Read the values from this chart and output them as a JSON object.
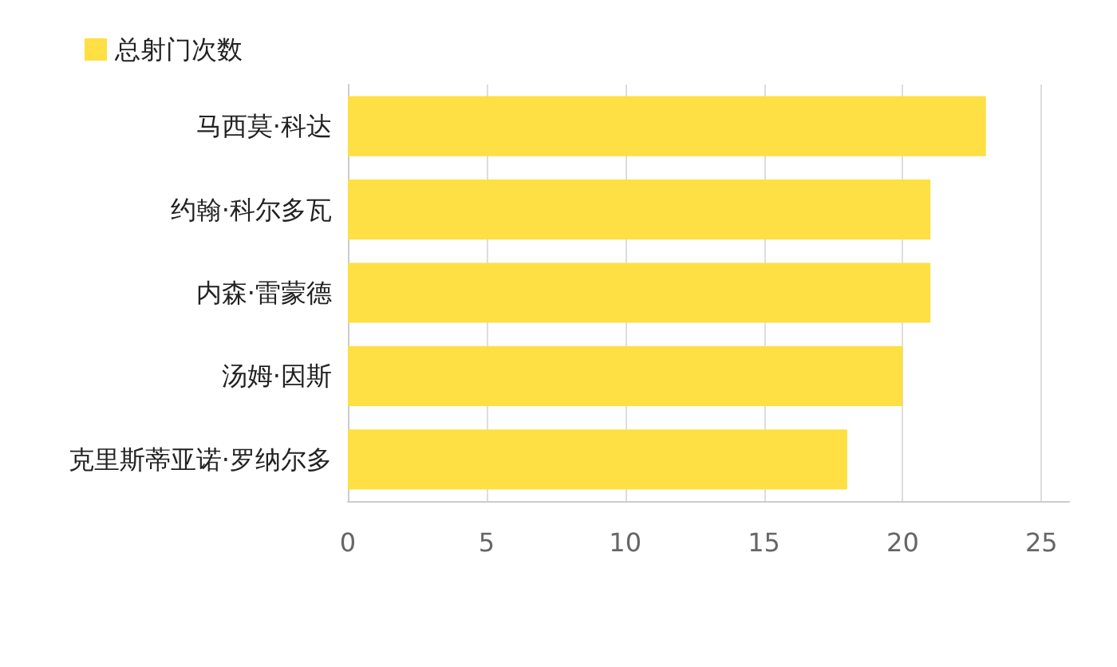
{
  "chart_data": {
    "type": "bar",
    "orientation": "horizontal",
    "categories": [
      "马西莫·科达",
      "约翰·科尔多瓦",
      "内森·雷蒙德",
      "汤姆·因斯",
      "克里斯蒂亚诺·罗纳尔多"
    ],
    "series": [
      {
        "name": "总射门次数",
        "color": "#fedf44",
        "values": [
          23,
          21,
          21,
          20,
          18
        ]
      }
    ],
    "xlim": [
      0,
      26
    ],
    "xticks": [
      0,
      5,
      10,
      15,
      20,
      25
    ],
    "grid": "x",
    "legend": "top left"
  }
}
